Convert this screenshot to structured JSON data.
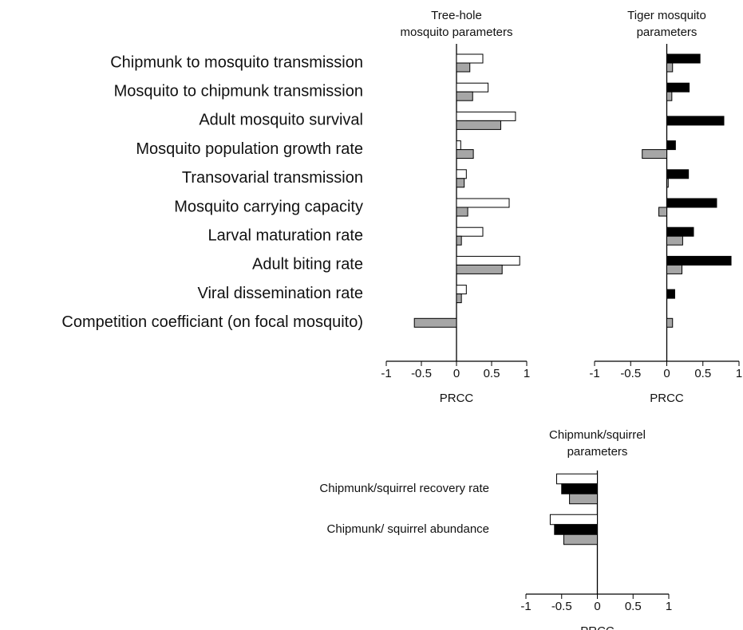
{
  "chart_data": [
    {
      "type": "bar",
      "orientation": "horizontal",
      "title": "Tree-hole\nmosquito parameters",
      "xlabel": "PRCC",
      "categories": [
        "Chipmunk to mosquito transmission",
        "Mosquito to chipmunk transmission",
        "Adult mosquito survival",
        "Mosquito population growth rate",
        "Transovarial transmission",
        "Mosquito carrying capacity",
        "Larval maturation rate",
        "Adult biting rate",
        "Viral dissemination rate",
        "Competition coefficiant (on focal mosquito)"
      ],
      "series": [
        {
          "color": "#ffffff",
          "values": [
            0.375,
            0.45,
            0.84,
            0.06,
            0.14,
            0.75,
            0.375,
            0.9,
            0.14,
            null
          ]
        },
        {
          "color": "#a6a6a6",
          "values": [
            0.19,
            0.23,
            0.63,
            0.24,
            0.11,
            0.16,
            0.07,
            0.65,
            0.07,
            -0.6
          ]
        }
      ],
      "xlim": [
        -1,
        1
      ],
      "xticks": [
        -1,
        -0.5,
        0,
        0.5,
        1
      ]
    },
    {
      "type": "bar",
      "orientation": "horizontal",
      "title": "Tiger mosquito\nparameters",
      "xlabel": "PRCC",
      "series": [
        {
          "color": "#000000",
          "values": [
            0.46,
            0.31,
            0.79,
            0.12,
            0.3,
            0.69,
            0.37,
            0.89,
            0.11,
            null
          ]
        },
        {
          "color": "#a6a6a6",
          "values": [
            0.08,
            0.07,
            null,
            -0.34,
            0.02,
            -0.11,
            0.22,
            0.21,
            null,
            0.08
          ]
        }
      ],
      "xlim": [
        -1,
        1
      ],
      "xticks": [
        -1,
        -0.5,
        0,
        0.5,
        1
      ]
    },
    {
      "type": "bar",
      "orientation": "horizontal",
      "title": "Chipmunk/squirrel\nparameters",
      "xlabel": "PRCC",
      "categories": [
        "Chipmunk/squirrel recovery rate",
        "Chipmunk/ squirrel abundance"
      ],
      "series": [
        {
          "color": "#ffffff",
          "values": [
            -0.57,
            -0.66
          ]
        },
        {
          "color": "#000000",
          "values": [
            -0.5,
            -0.6
          ]
        },
        {
          "color": "#a6a6a6",
          "values": [
            -0.39,
            -0.47
          ]
        }
      ],
      "xlim": [
        -1,
        1
      ],
      "xticks": [
        -1,
        -0.5,
        0,
        0.5,
        1
      ]
    }
  ]
}
